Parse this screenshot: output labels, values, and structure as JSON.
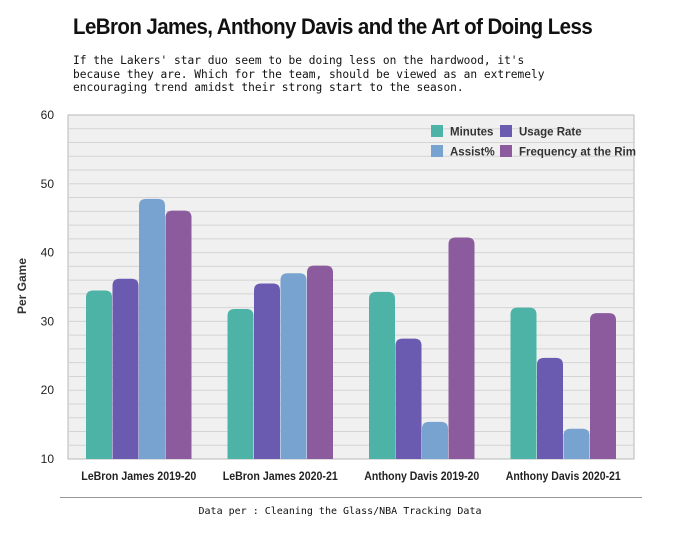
{
  "title": "LeBron James, Anthony Davis and the Art of Doing Less",
  "subtitle": "If the Lakers' star duo seem to be doing less on the hardwood, it's because they are. Which for the team, should be viewed as an extremely encouraging trend amidst their strong start to the season.",
  "source": "Data per : Cleaning the Glass/NBA Tracking Data",
  "colors": {
    "minutes": "#4db3a6",
    "usage": "#6b5bb0",
    "assist": "#78a2cf",
    "rim": "#8c5b9e",
    "plot_bg": "#f0f0f0",
    "grid": "#d4d4d4"
  },
  "chart_data": {
    "type": "bar",
    "title": "LeBron James, Anthony Davis and the Art of Doing Less",
    "xlabel": "",
    "ylabel": "Per Game",
    "ylim": [
      10,
      60
    ],
    "yticks": [
      10,
      20,
      30,
      40,
      50,
      60
    ],
    "grid": true,
    "legend_position": "top-right",
    "categories": [
      "LeBron James 2019-20",
      "LeBron James 2020-21",
      "Anthony Davis 2019-20",
      "Anthony Davis 2020-21"
    ],
    "series": [
      {
        "name": "Minutes",
        "color_key": "minutes",
        "values": [
          34.5,
          31.8,
          34.3,
          32.0
        ]
      },
      {
        "name": "Usage Rate",
        "color_key": "usage",
        "values": [
          36.2,
          35.5,
          27.5,
          24.7
        ]
      },
      {
        "name": "Assist%",
        "color_key": "assist",
        "values": [
          47.8,
          37.0,
          15.4,
          14.4
        ]
      },
      {
        "name": "Frequency at the Rim",
        "color_key": "rim",
        "values": [
          46.1,
          38.1,
          42.2,
          31.2
        ]
      }
    ]
  }
}
